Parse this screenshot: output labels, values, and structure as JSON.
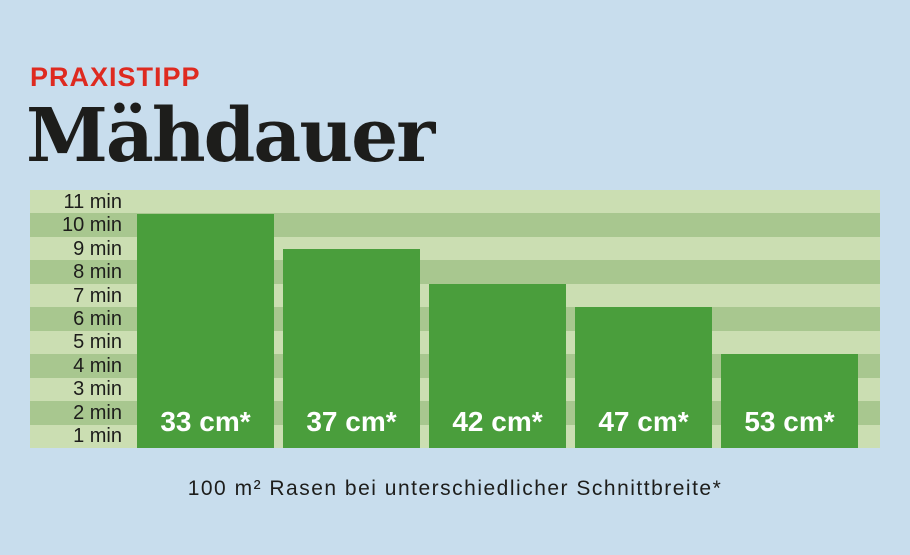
{
  "kicker": {
    "text": "PRAXISTIPP",
    "color": "#de2a20"
  },
  "title": "Mähdauer",
  "caption": "100 m² Rasen bei unterschiedlicher Schnittbreite*",
  "colors": {
    "background": "#c8dded",
    "bar": "#4a9e3c",
    "stripe_light": "#cbdeb2",
    "stripe_dark": "#a8c78f",
    "kicker": "#de2a20",
    "text": "#1d1d1b",
    "bar_label": "#ffffff"
  },
  "chart_data": {
    "type": "bar",
    "title": "Mähdauer",
    "subtitle": "PRAXISTIPP",
    "categories": [
      "33 cm*",
      "37 cm*",
      "42 cm*",
      "47 cm*",
      "53 cm*"
    ],
    "values": [
      10,
      8.5,
      7,
      6,
      4
    ],
    "unit": "min",
    "xlabel": "",
    "ylabel": "",
    "ylim": [
      0,
      11
    ],
    "y_ticks": [
      "11 min",
      "10 min",
      "9 min",
      "8 min",
      "7 min",
      "6 min",
      "5 min",
      "4 min",
      "3 min",
      "2 min",
      "1 min"
    ],
    "grid": "horizontal-stripes",
    "legend": "none",
    "caption": "100 m² Rasen bei unterschiedlicher Schnittbreite*"
  }
}
